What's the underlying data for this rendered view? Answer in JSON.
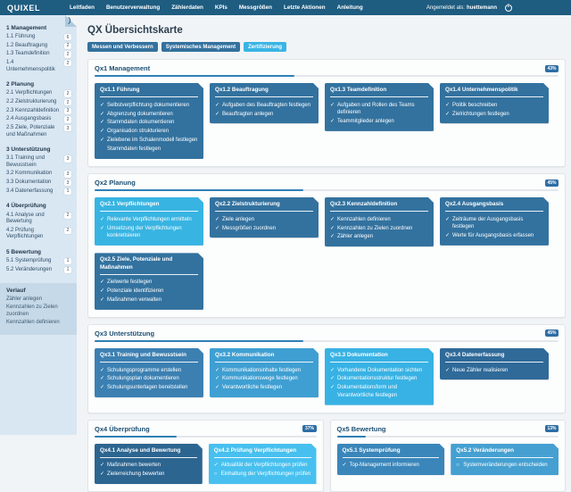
{
  "topnav": {
    "brand": "QUIXEL",
    "items": [
      "Leitfaden",
      "Benutzerverwaltung",
      "Zählerdaten",
      "KPIs",
      "Messgrößen",
      "Letzte Aktionen",
      "Anleitung"
    ],
    "user_label": "Angemeldet als:",
    "user_name": "huettemann"
  },
  "sidebar": {
    "groups": [
      {
        "title": "1 Management",
        "items": [
          {
            "label": "1.1 Führung",
            "count": "6"
          },
          {
            "label": "1.2 Beauftragung",
            "count": "2"
          },
          {
            "label": "1.3 Teamdefinition",
            "count": "2"
          },
          {
            "label": "1.4 Unternehmenspolitik",
            "count": "2"
          }
        ]
      },
      {
        "title": "2 Planung",
        "items": [
          {
            "label": "2.1 Verpflichtungen",
            "count": "2"
          },
          {
            "label": "2.2 Zielstrukturierung",
            "count": "2"
          },
          {
            "label": "2.3 Kennzahldefinition",
            "count": "3"
          },
          {
            "label": "2.4 Ausgangsbasis",
            "count": "2"
          },
          {
            "label": "2.5 Ziele, Potenziale und Maßnahmen",
            "count": "3"
          }
        ]
      },
      {
        "title": "3 Unterstützung",
        "items": [
          {
            "label": "3.1 Training und Bewusstsein",
            "count": "3"
          },
          {
            "label": "3.2 Kommunikation",
            "count": "3"
          },
          {
            "label": "3.3 Dokumentation",
            "count": "3"
          },
          {
            "label": "3.4 Datenerfassung",
            "count": "1"
          }
        ]
      },
      {
        "title": "4 Überprüfung",
        "items": [
          {
            "label": "4.1 Analyse und Bewertung",
            "count": "2"
          },
          {
            "label": "4.2 Prüfung Verpflichtungen",
            "count": "2"
          }
        ]
      },
      {
        "title": "5 Bewertung",
        "items": [
          {
            "label": "5.1 Systemprüfung",
            "count": "1"
          },
          {
            "label": "5.2 Veränderungen",
            "count": "1"
          }
        ]
      }
    ],
    "history": {
      "title": "Verlauf",
      "items": [
        "Zähler anlegen",
        "Kennzahlen zu Zielen zuordnen",
        "Kennzahlen definieren"
      ]
    }
  },
  "main": {
    "title": "QX Übersichtskarte",
    "buttons": [
      {
        "label": "Messen und Verbessern",
        "color": "#33719e"
      },
      {
        "label": "Systemisches Management",
        "color": "#33719e"
      },
      {
        "label": "Zertifizierung",
        "color": "#3ab4e4"
      }
    ],
    "sections": [
      {
        "id": "qx1",
        "title": "Qx1 Management",
        "percent": "43%",
        "progress": 43,
        "cards": [
          {
            "id": "qx1-1",
            "title": "Qx1.1 Führung",
            "color": "#33729f",
            "tasks": [
              {
                "state": "done",
                "label": "Selbstverpflichtung dokumentieren"
              },
              {
                "state": "done",
                "label": "Abgrenzung dokumentieren"
              },
              {
                "state": "done",
                "label": "Stammdaten dokumentieren"
              },
              {
                "state": "done",
                "label": "Organisation strukturieren"
              },
              {
                "state": "done",
                "label": "Zielebene im Schalenmodell festlegen"
              },
              {
                "state": "none",
                "label": "Stammdaten festlegen"
              }
            ]
          },
          {
            "id": "qx1-2",
            "title": "Qx1.2 Beauftragung",
            "color": "#33729f",
            "tasks": [
              {
                "state": "done",
                "label": "Aufgaben des Beauftragten festlegen"
              },
              {
                "state": "done",
                "label": "Beauftragten anlegen"
              }
            ]
          },
          {
            "id": "qx1-3",
            "title": "Qx1.3 Teamdefinition",
            "color": "#33729f",
            "tasks": [
              {
                "state": "done",
                "label": "Aufgaben und Rollen des Teams definieren"
              },
              {
                "state": "done",
                "label": "Teammitglieder anlegen"
              }
            ]
          },
          {
            "id": "qx1-4",
            "title": "Qx1.4 Unternehmenspolitik",
            "color": "#33729f",
            "tasks": [
              {
                "state": "done",
                "label": "Politik beschreiben"
              },
              {
                "state": "done",
                "label": "Zielrichtungen festlegen"
              }
            ]
          }
        ]
      },
      {
        "id": "qx2",
        "title": "Qx2 Planung",
        "percent": "45%",
        "progress": 45,
        "cards": [
          {
            "id": "qx2-1",
            "title": "Qx2.1 Verpflichtungen",
            "color": "#38b4e2",
            "tasks": [
              {
                "state": "done",
                "label": "Relevante Verpflichtungen ermitteln"
              },
              {
                "state": "done",
                "label": "Umsetzung der Verpflichtungen konkretisieren"
              }
            ]
          },
          {
            "id": "qx2-2",
            "title": "Qx2.2 Zielstrukturierung",
            "color": "#33729f",
            "tasks": [
              {
                "state": "done",
                "label": "Ziele anlegen"
              },
              {
                "state": "done",
                "label": "Messgrößen zuordnen"
              }
            ]
          },
          {
            "id": "qx2-3",
            "title": "Qx2.3 Kennzahldefinition",
            "color": "#33729f",
            "tasks": [
              {
                "state": "done",
                "label": "Kennzahlen definieren"
              },
              {
                "state": "done",
                "label": "Kennzahlen zu Zielen zuordnen"
              },
              {
                "state": "done",
                "label": "Zähler anlegen"
              }
            ]
          },
          {
            "id": "qx2-4",
            "title": "Qx2.4 Ausgangsbasis",
            "color": "#33729f",
            "tasks": [
              {
                "state": "done",
                "label": "Zeiträume der Ausgangsbasis festlegen"
              },
              {
                "state": "done",
                "label": "Werte für Ausgangsbasis erfassen"
              }
            ]
          },
          {
            "id": "qx2-5",
            "title": "Qx2.5 Ziele, Potenziale und Maßnahmen",
            "color": "#33729f",
            "tasks": [
              {
                "state": "done",
                "label": "Zielwerte festlegen"
              },
              {
                "state": "done",
                "label": "Potenziale identifizieren"
              },
              {
                "state": "done",
                "label": "Maßnahmen verwalten"
              }
            ]
          }
        ]
      },
      {
        "id": "qx3",
        "title": "Qx3 Unterstützung",
        "percent": "45%",
        "progress": 45,
        "cards": [
          {
            "id": "qx3-1",
            "title": "Qx3.1 Training und Bewusstsein",
            "color": "#3c80b2",
            "tasks": [
              {
                "state": "done",
                "label": "Schulungsprogramme erstellen"
              },
              {
                "state": "done",
                "label": "Schulungsplan dokumentieren"
              },
              {
                "state": "done",
                "label": "Schulungsunterlagen bereitstellen"
              }
            ]
          },
          {
            "id": "qx3-2",
            "title": "Qx3.2 Kommunikation",
            "color": "#3f9fd2",
            "tasks": [
              {
                "state": "done",
                "label": "Kommunikationsinhalte festlegen"
              },
              {
                "state": "done",
                "label": "Kommunikationswege festlegen"
              },
              {
                "state": "done",
                "label": "Verantwortliche festlegen"
              }
            ]
          },
          {
            "id": "qx3-3",
            "title": "Qx3.3 Dokumentation",
            "color": "#38b2e4",
            "tasks": [
              {
                "state": "done",
                "label": "Vorhandene Dokumentation sichten"
              },
              {
                "state": "done",
                "label": "Dokumentationsstruktur festlegen"
              },
              {
                "state": "done",
                "label": "Dokumentationsform und Verantwortliche festlegen"
              }
            ]
          },
          {
            "id": "qx3-4",
            "title": "Qx3.4 Datenerfassung",
            "color": "#2f6a99",
            "tasks": [
              {
                "state": "done",
                "label": "Neue Zähler realisieren"
              }
            ]
          }
        ]
      },
      {
        "id": "qx4",
        "title": "Qx4 Überprüfung",
        "percent": "37%",
        "progress": 37,
        "cards": [
          {
            "id": "qx4-1",
            "title": "Qx4.1 Analyse und Bewertung",
            "color": "#2c6590",
            "tasks": [
              {
                "state": "done",
                "label": "Maßnahmen bewerten"
              },
              {
                "state": "done",
                "label": "Zielerreichung bewerten"
              }
            ]
          },
          {
            "id": "qx4-2",
            "title": "Qx4.2 Prüfung Verpflichtungen",
            "color": "#47c0ef",
            "tasks": [
              {
                "state": "done",
                "label": "Aktualität der Verpflichtungen prüfen"
              },
              {
                "state": "open",
                "label": "Einhaltung der Verpflichtungen prüfen"
              }
            ]
          }
        ]
      },
      {
        "id": "qx5",
        "title": "Qx5 Bewertung",
        "percent": "13%",
        "progress": 13,
        "cards": [
          {
            "id": "qx5-1",
            "title": "Qx5.1 Systemprüfung",
            "color": "#3a86ba",
            "tasks": [
              {
                "state": "done",
                "label": "Top-Management informieren"
              }
            ]
          },
          {
            "id": "qx5-2",
            "title": "Qx5.2 Veränderungen",
            "color": "#45a0d1",
            "tasks": [
              {
                "state": "open",
                "label": "Systemveränderungen entscheiden"
              }
            ]
          }
        ]
      }
    ]
  },
  "icons": {
    "check": "✓",
    "open": "○"
  },
  "colors": {
    "nav_bg": "#1e5c80",
    "sidebar_bg": "#d9e7f3",
    "accent_dark": "#2e6da4",
    "accent_light": "#38b4e2",
    "progress_fill": "#2f7fb5"
  }
}
